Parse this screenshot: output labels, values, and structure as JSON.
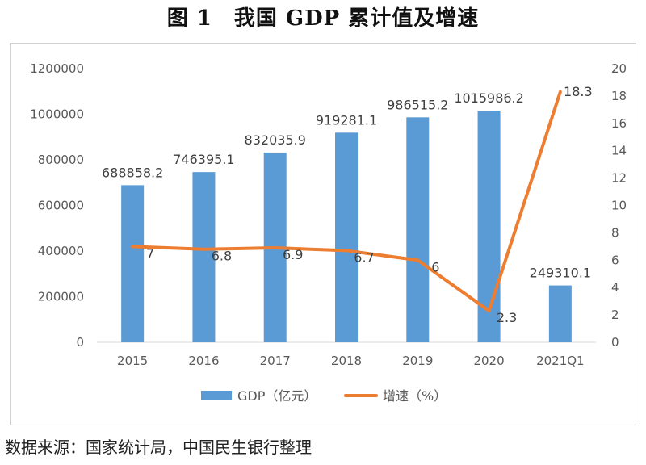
{
  "title": "图 1　我国 GDP 累计值及增速",
  "source": "数据来源：国家统计局，中国民生银行整理",
  "colors": {
    "bar": "#5b9bd5",
    "line": "#ed7d31",
    "axis_text": "#595959",
    "grid": "#d9d9d9"
  },
  "chart_data": {
    "type": "bar",
    "categories": [
      "2015",
      "2016",
      "2017",
      "2018",
      "2019",
      "2020",
      "2021Q1"
    ],
    "series": [
      {
        "name": "GDP（亿元）",
        "type": "bar",
        "axis": "left",
        "values": [
          688858.2,
          746395.1,
          832035.9,
          919281.1,
          986515.2,
          1015986.2,
          249310.1
        ],
        "labels": [
          "688858.2",
          "746395.1",
          "832035.9",
          "919281.1",
          "986515.2",
          "1015986.2",
          "249310.1"
        ]
      },
      {
        "name": "增速（%）",
        "type": "line",
        "axis": "right",
        "values": [
          7,
          6.8,
          6.9,
          6.7,
          6,
          2.3,
          18.3
        ],
        "labels": [
          "7",
          "6.8",
          "6.9",
          "6.7",
          "6",
          "2.3",
          "18.3"
        ]
      }
    ],
    "y_left": {
      "min": 0,
      "max": 1200000,
      "ticks": [
        "0",
        "200000",
        "400000",
        "600000",
        "800000",
        "1000000",
        "1200000"
      ]
    },
    "y_right": {
      "min": 0,
      "max": 20,
      "ticks": [
        "0",
        "2",
        "4",
        "6",
        "8",
        "10",
        "12",
        "14",
        "16",
        "18",
        "20"
      ]
    },
    "grid": false,
    "legend_position": "bottom"
  }
}
